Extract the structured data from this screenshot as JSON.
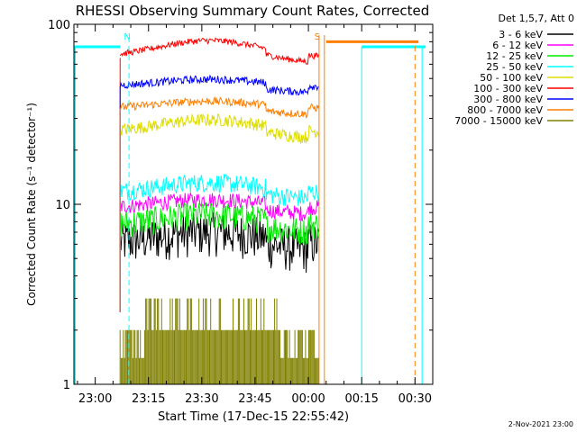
{
  "chart_data": {
    "type": "line",
    "title": "RHESSI Observing Summary Count Rates, Corrected",
    "xlabel": "Start Time (17-Dec-15 22:55:42)",
    "ylabel": "Corrected Count Rate (s⁻¹ detector⁻¹)",
    "y_scale": "log",
    "ylim": [
      1,
      100
    ],
    "xlim_minutes": [
      -6,
      95
    ],
    "x_ticks": [
      {
        "label": "23:00",
        "min": 0
      },
      {
        "label": "23:15",
        "min": 15
      },
      {
        "label": "23:30",
        "min": 30
      },
      {
        "label": "23:45",
        "min": 45
      },
      {
        "label": "00:00",
        "min": 60
      },
      {
        "label": "00:15",
        "min": 75
      },
      {
        "label": "00:30",
        "min": 90
      }
    ],
    "y_ticks": [
      {
        "label": "1",
        "value": 1
      },
      {
        "label": "10",
        "value": 10
      },
      {
        "label": "100",
        "value": 100
      }
    ],
    "legend_header": "Det 1,5,7, Att 0",
    "legend_position": "top-right",
    "data_start_min": 7,
    "data_end_min": 63,
    "series": [
      {
        "name": "3 - 6 keV",
        "color": "#000000",
        "base": 6.0,
        "bump": 0.18,
        "noise": 0.28
      },
      {
        "name": "6 - 12 keV",
        "color": "#ff00ff",
        "base": 9.5,
        "bump": 0.12,
        "noise": 0.1
      },
      {
        "name": "12 - 25 keV",
        "color": "#00ee00",
        "base": 7.6,
        "bump": 0.15,
        "noise": 0.18
      },
      {
        "name": "25 - 50 keV",
        "color": "#00ffff",
        "base": 11.5,
        "bump": 0.15,
        "noise": 0.12
      },
      {
        "name": "50 - 100 keV",
        "color": "#dddd00",
        "base": 25.0,
        "bump": 0.18,
        "noise": 0.08
      },
      {
        "name": "100 - 300 keV",
        "color": "#ff0000",
        "base": 65.0,
        "bump": 0.25,
        "noise": 0.04
      },
      {
        "name": "300 - 800 keV",
        "color": "#0000ff",
        "base": 45.0,
        "bump": 0.1,
        "noise": 0.05
      },
      {
        "name": "800 - 7000 keV",
        "color": "#ff7f00",
        "base": 34.0,
        "bump": 0.1,
        "noise": 0.05
      },
      {
        "name": "7000 - 15000 keV",
        "color": "#808000",
        "base": 1.0,
        "bump": 0.0,
        "noise": 0.0
      }
    ],
    "annotations": [
      {
        "text": "N",
        "min": 9,
        "color": "#00ffff"
      },
      {
        "text": "S",
        "min": 62.5,
        "color": "#ff7f00"
      }
    ],
    "footer": "2-Nov-2021 23:00"
  }
}
